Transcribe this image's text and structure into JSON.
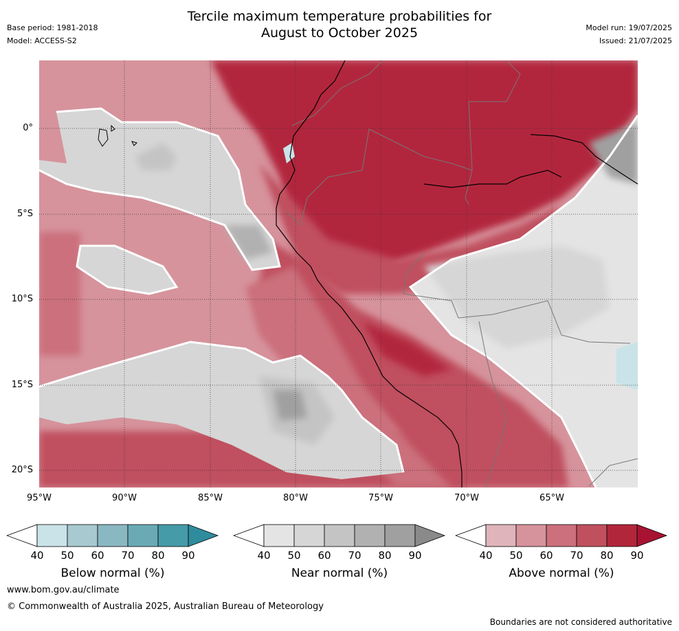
{
  "header": {
    "title_line1": "Tercile maximum temperature probabilities for",
    "title_line2": "August to October 2025",
    "base_period": "Base period: 1981-2018",
    "model": "Model: ACCESS-S2",
    "model_run": "Model run: 19/07/2025",
    "issued": "Issued: 21/07/2025"
  },
  "map": {
    "lat_labels": [
      "0°",
      "5°S",
      "10°S",
      "15°S",
      "20°S"
    ],
    "lon_labels": [
      "95°W",
      "90°W",
      "85°W",
      "80°W",
      "75°W",
      "70°W",
      "65°W"
    ],
    "colors": {
      "above": [
        "#dfb4bb",
        "#d6939c",
        "#cb707c",
        "#c0505e",
        "#b2263c",
        "#a81332"
      ],
      "near": [
        "#e4e4e4",
        "#d6d6d6",
        "#c4c4c4",
        "#b1b1b1",
        "#a0a0a0",
        "#8a8a8a"
      ],
      "below": [
        "#cae3e8",
        "#a7c9cf",
        "#8ab8c2",
        "#6aaab5",
        "#459ba8",
        "#2e8c9d"
      ]
    }
  },
  "colorbars": [
    {
      "title": "Below normal (%)",
      "ticks": [
        "40",
        "50",
        "60",
        "70",
        "80",
        "90"
      ],
      "scheme": "below"
    },
    {
      "title": "Near normal (%)",
      "ticks": [
        "40",
        "50",
        "60",
        "70",
        "80",
        "90"
      ],
      "scheme": "near"
    },
    {
      "title": "Above normal (%)",
      "ticks": [
        "40",
        "50",
        "60",
        "70",
        "80",
        "90"
      ],
      "scheme": "above"
    }
  ],
  "footer": {
    "url": "www.bom.gov.au/climate",
    "copyright": "© Commonwealth of Australia 2025, Australian Bureau of Meteorology",
    "disclaimer": "Boundaries are not considered authoritative"
  }
}
